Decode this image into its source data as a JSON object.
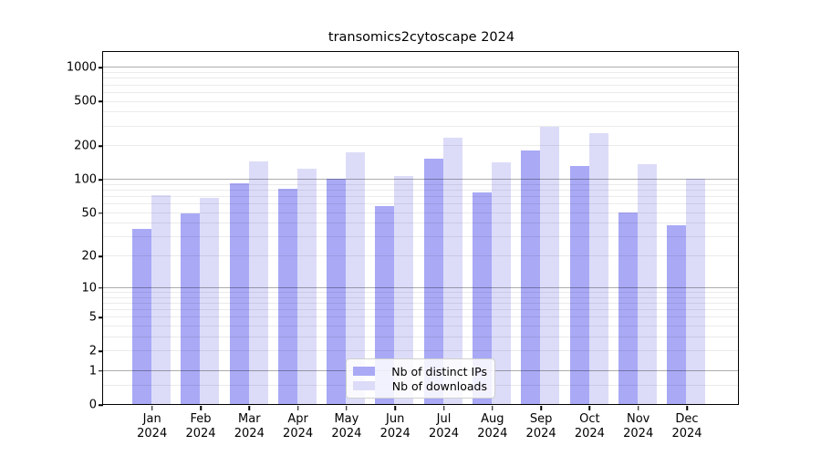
{
  "chart_data": {
    "type": "bar",
    "title": "transomics2cytoscape 2024",
    "categories": [
      "Jan",
      "Feb",
      "Mar",
      "Apr",
      "May",
      "Jun",
      "Jul",
      "Aug",
      "Sep",
      "Oct",
      "Nov",
      "Dec"
    ],
    "category_year": "2024",
    "series": [
      {
        "name": "Nb of distinct IPs",
        "color": "#a9a9f6",
        "values": [
          35,
          49,
          92,
          82,
          100,
          57,
          153,
          76,
          180,
          130,
          50,
          38
        ]
      },
      {
        "name": "Nb of downloads",
        "color": "#dcdcf9",
        "values": [
          71,
          68,
          144,
          124,
          175,
          107,
          234,
          140,
          296,
          255,
          135,
          100
        ]
      }
    ],
    "y_scale": "log10(1+v)",
    "ylim": [
      0,
      1356
    ],
    "y_tick_labels": [
      "0",
      "1",
      "2",
      "5",
      "10",
      "20",
      "50",
      "100",
      "200",
      "500",
      "1000"
    ],
    "y_ticks": [
      0,
      1,
      2,
      5,
      10,
      20,
      50,
      100,
      200,
      500,
      1000
    ],
    "y_major_gridlines": [
      1,
      10,
      100,
      1000
    ],
    "y_minor_gridlines": [
      0.5,
      2,
      3,
      4,
      5,
      6,
      7,
      8,
      9,
      20,
      30,
      40,
      50,
      60,
      70,
      80,
      90,
      200,
      300,
      400,
      500,
      600,
      700,
      800,
      900
    ],
    "grid": true,
    "legend_position": "lower-center-inside",
    "xlabel": "",
    "ylabel": ""
  },
  "colors": {
    "axis": "#000000",
    "major_grid": "#b3b3b3",
    "minor_grid": "#ebebeb",
    "background": "#ffffff"
  }
}
